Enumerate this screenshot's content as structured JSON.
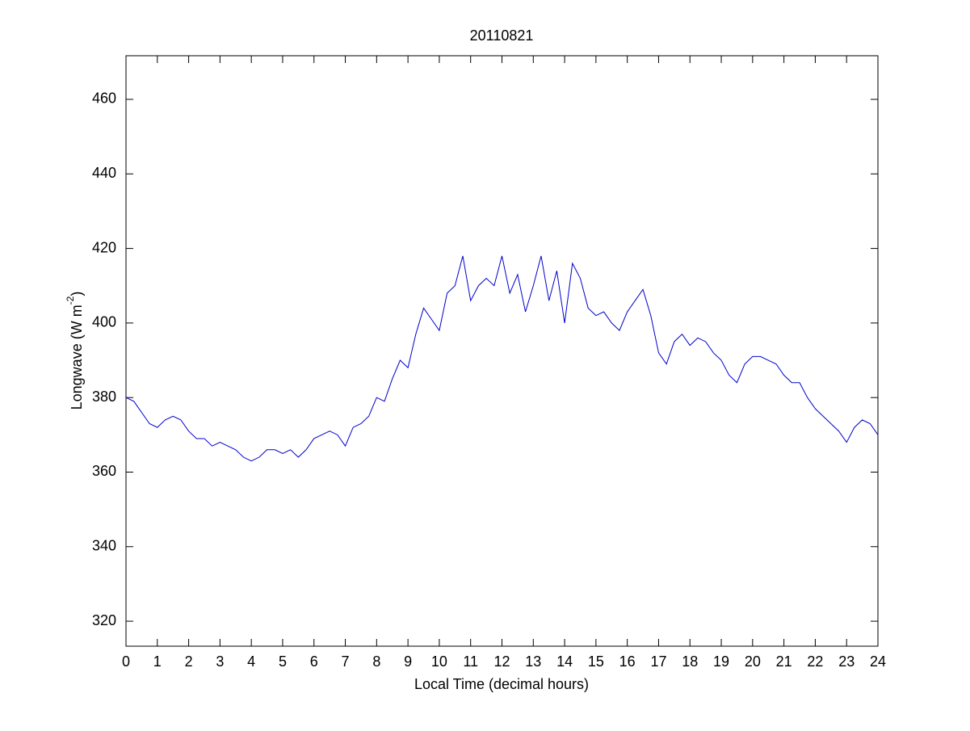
{
  "chart_data": {
    "type": "line",
    "title": "20110821",
    "xlabel": "Local Time (decimal hours)",
    "ylabel": [
      "Longwave (W m",
      "-2",
      ")"
    ],
    "xlim": [
      0,
      24
    ],
    "ylim": [
      313.3,
      471.7
    ],
    "xticks": [
      0,
      1,
      2,
      3,
      4,
      5,
      6,
      7,
      8,
      9,
      10,
      11,
      12,
      13,
      14,
      15,
      16,
      17,
      18,
      19,
      20,
      21,
      22,
      23,
      24
    ],
    "yticks": [
      320,
      340,
      360,
      380,
      400,
      420,
      440,
      460
    ],
    "grid": false,
    "series": [
      {
        "color": "#0000cc",
        "x": [
          0,
          0.25,
          0.5,
          0.75,
          1,
          1.25,
          1.5,
          1.75,
          2,
          2.25,
          2.5,
          2.75,
          3,
          3.25,
          3.5,
          3.75,
          4,
          4.25,
          4.5,
          4.75,
          5,
          5.25,
          5.5,
          5.75,
          6,
          6.25,
          6.5,
          6.75,
          7,
          7.25,
          7.5,
          7.75,
          8,
          8.25,
          8.5,
          8.75,
          9,
          9.25,
          9.5,
          9.75,
          10,
          10.25,
          10.5,
          10.75,
          11,
          11.25,
          11.5,
          11.75,
          12,
          12.25,
          12.5,
          12.75,
          13,
          13.25,
          13.5,
          13.75,
          14,
          14.25,
          14.5,
          14.75,
          15,
          15.25,
          15.5,
          15.75,
          16,
          16.25,
          16.5,
          16.75,
          17,
          17.25,
          17.5,
          17.75,
          18,
          18.25,
          18.5,
          18.75,
          19,
          19.25,
          19.5,
          19.75,
          20,
          20.25,
          20.5,
          20.75,
          21,
          21.25,
          21.5,
          21.75,
          22,
          22.25,
          22.5,
          22.75,
          23,
          23.25,
          23.5,
          23.75,
          24
        ],
        "values": [
          380,
          379,
          376,
          373,
          372,
          374,
          375,
          374,
          371,
          369,
          369,
          367,
          368,
          367,
          366,
          364,
          363,
          364,
          366,
          366,
          365,
          366,
          364,
          366,
          369,
          370,
          371,
          370,
          367,
          372,
          373,
          375,
          380,
          379,
          385,
          390,
          388,
          397,
          404,
          401,
          398,
          408,
          410,
          418,
          406,
          410,
          412,
          410,
          418,
          408,
          413,
          403,
          410,
          418,
          406,
          414,
          400,
          416,
          412,
          404,
          402,
          403,
          400,
          398,
          403,
          406,
          409,
          402,
          392,
          389,
          395,
          397,
          394,
          396,
          395,
          392,
          390,
          386,
          384,
          389,
          391,
          391,
          390,
          389,
          386,
          384,
          384,
          380,
          377,
          375,
          373,
          371,
          368,
          372,
          374,
          373,
          370
        ]
      }
    ]
  }
}
